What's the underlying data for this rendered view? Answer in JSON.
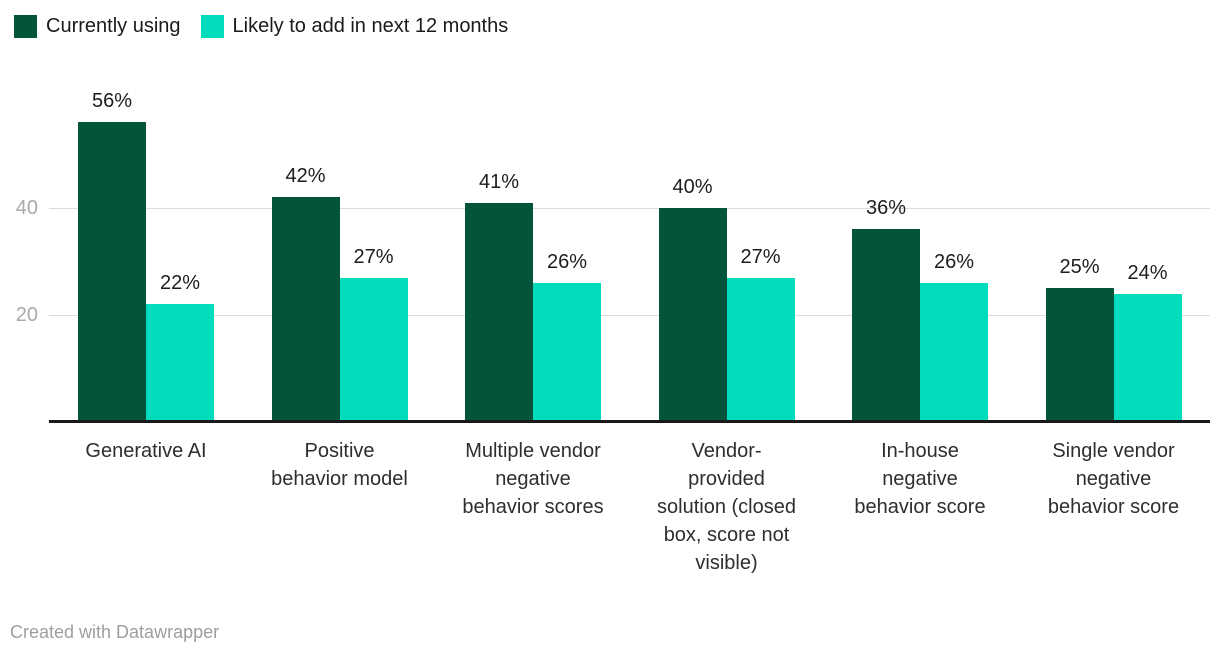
{
  "chart_data": {
    "type": "bar",
    "categories": [
      "Generative AI",
      "Positive behavior model",
      "Multiple vendor negative behavior scores",
      "Vendor-provided solution (closed box, score not visible)",
      "In-house negative behavior score",
      "Single vendor negative behavior score"
    ],
    "category_label_lines": [
      [
        "Generative AI"
      ],
      [
        "Positive",
        "behavior model"
      ],
      [
        "Multiple vendor",
        "negative",
        "behavior scores"
      ],
      [
        "Vendor-",
        "provided",
        "solution (closed",
        "box, score not",
        "visible)"
      ],
      [
        "In-house",
        "negative",
        "behavior score"
      ],
      [
        "Single vendor",
        "negative",
        "behavior score"
      ]
    ],
    "series": [
      {
        "name": "Currently using",
        "color": "#02543a",
        "values": [
          56,
          42,
          41,
          40,
          36,
          25
        ]
      },
      {
        "name": "Likely to add in next 12 months",
        "color": "#00dcbc",
        "values": [
          22,
          27,
          26,
          27,
          26,
          24
        ]
      }
    ],
    "value_suffix": "%",
    "y_ticks": [
      20,
      40
    ],
    "ylim": [
      0,
      60
    ],
    "grid": true,
    "legend_position": "top-left",
    "grid_color": "#dcdcdc",
    "axis_line_color": "#191919",
    "tick_label_color": "#a9a9a9"
  },
  "footer": {
    "credit": "Created with Datawrapper"
  }
}
